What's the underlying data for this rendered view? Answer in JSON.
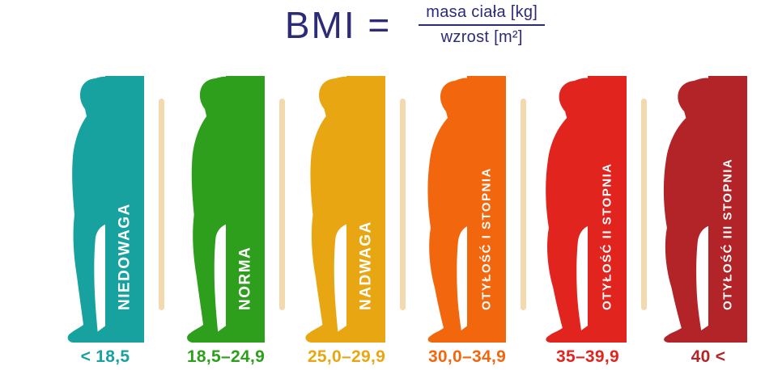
{
  "header": {
    "formula_lhs": "BMI =",
    "numerator": "masa ciała [kg]",
    "denominator": "wzrost [m²]"
  },
  "colors": {
    "formula_text": "#2d2b78",
    "divider": "#f2daae"
  },
  "categories": [
    {
      "label": "NIEDOWAGA",
      "range": "< 18,5",
      "color": "#17a2a0",
      "build": "slim"
    },
    {
      "label": "NORMA",
      "range": "18,5–24,9",
      "color": "#2e9e1d",
      "build": "slim"
    },
    {
      "label": "NADWAGA",
      "range": "25,0–29,9",
      "color": "#e8a712",
      "build": "slim"
    },
    {
      "label": "OTYŁOŚĆ I STOPNIA",
      "range": "30,0–34,9",
      "color": "#f2660d",
      "build": "heavy"
    },
    {
      "label": "OTYŁOŚĆ II STOPNIA",
      "range": "35–39,9",
      "color": "#e2241f",
      "build": "heavy"
    },
    {
      "label": "OTYŁOŚĆ III STOPNIA",
      "range": "40 <",
      "color": "#b22428",
      "build": "heavy"
    }
  ]
}
